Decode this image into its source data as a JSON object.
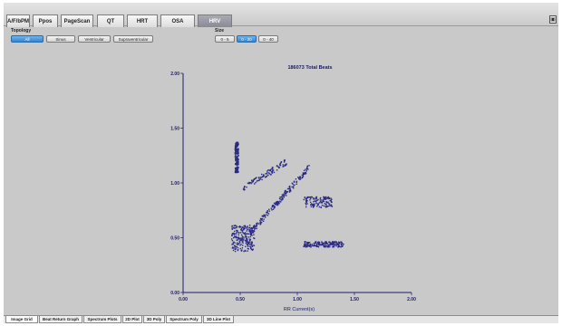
{
  "tabs": [
    {
      "label": "A/F/bPM"
    },
    {
      "label": "Ppos"
    },
    {
      "label": "PageScan"
    },
    {
      "label": "QT"
    },
    {
      "label": "HRT"
    },
    {
      "label": "OSA"
    },
    {
      "label": "HRV"
    }
  ],
  "active_tab": "HRV",
  "topology": {
    "label": "Topology",
    "options": [
      "All",
      "Sinus",
      "Ventricular",
      "Supraventricular"
    ],
    "selected": "All"
  },
  "size": {
    "label": "Size",
    "options": [
      "0 - 5",
      "0 - 20",
      "0 - 40"
    ],
    "selected": "0 - 20"
  },
  "bottom_tabs": [
    {
      "label": "Image Grid"
    },
    {
      "label": "Beat Return Graph"
    },
    {
      "label": "Spectrum Plots"
    },
    {
      "label": "2D Plot"
    },
    {
      "label": "3D Poly"
    },
    {
      "label": "Spectrum Poly"
    },
    {
      "label": "3D Line Plot"
    }
  ],
  "colors": {
    "points": "#2a2a86",
    "accent": "#2f86d6",
    "background": "#c9c9c9"
  },
  "icons": {
    "window_button": "restore-icon"
  },
  "chart_data": {
    "type": "scatter",
    "title": "186073 Total Beats",
    "xlabel": "RR Current(s)",
    "ylabel": "",
    "xlim": [
      0,
      2.0
    ],
    "ylim": [
      0,
      2.0
    ],
    "x_ticks": [
      "0.00",
      "0.50",
      "1.00",
      "1.50",
      "2.00"
    ],
    "y_ticks": [
      "0.00",
      "0.50",
      "1.00",
      "1.50",
      "2.00"
    ],
    "grid": false,
    "clusters": [
      {
        "x": [
          0.42,
          0.62
        ],
        "y": [
          0.38,
          0.62
        ],
        "density": 0.9
      },
      {
        "x": [
          0.58,
          1.1
        ],
        "y": [
          0.55,
          1.15
        ],
        "density": 0.8
      },
      {
        "x": [
          0.45,
          0.48
        ],
        "y": [
          1.1,
          1.38
        ],
        "density": 0.7
      },
      {
        "x": [
          1.05,
          1.4
        ],
        "y": [
          0.42,
          0.47
        ],
        "density": 0.7
      },
      {
        "x": [
          1.05,
          1.3
        ],
        "y": [
          0.78,
          0.88
        ],
        "density": 0.5
      },
      {
        "x": [
          0.52,
          0.9
        ],
        "y": [
          0.95,
          1.2
        ],
        "density": 0.4
      }
    ]
  }
}
